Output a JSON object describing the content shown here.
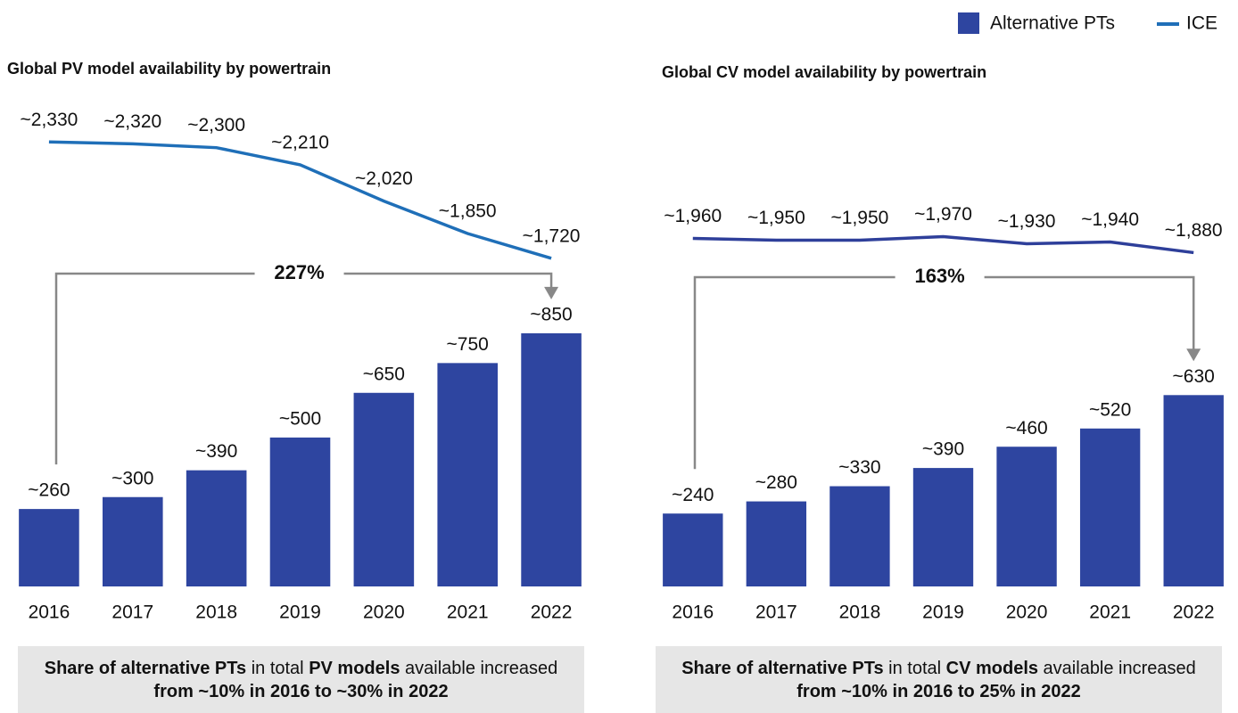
{
  "chart_data": [
    {
      "type": "bar",
      "title": "Global PV model availability by powertrain",
      "categories": [
        "2016",
        "2017",
        "2018",
        "2019",
        "2020",
        "2021",
        "2022"
      ],
      "series": [
        {
          "name": "Alternative PTs",
          "color": "#2e45a0",
          "values": [
            260,
            300,
            390,
            500,
            650,
            750,
            850
          ],
          "value_labels": [
            "~260",
            "~300",
            "~390",
            "~500",
            "~650",
            "~750",
            "~850"
          ]
        },
        {
          "name": "ICE",
          "color": "#1f6fb8",
          "axis": "y2",
          "values": [
            2330,
            2320,
            2300,
            2210,
            2020,
            1850,
            1720
          ],
          "value_labels": [
            "~2,330",
            "~2,320",
            "~2,300",
            "~2,210",
            "~2,020",
            "~1,850",
            "~1,720"
          ]
        }
      ],
      "ylim": [
        0,
        1550
      ],
      "y2lim": [
        0,
        2420
      ],
      "annotation": "227%",
      "note": [
        "Share of alternative PTs",
        " in total ",
        "PV models",
        " available increased ",
        "from ~10% in 2016 to ~30% in 2022"
      ]
    },
    {
      "type": "bar",
      "title": "Global CV model availability by powertrain",
      "categories": [
        "2016",
        "2017",
        "2018",
        "2019",
        "2020",
        "2021",
        "2022"
      ],
      "series": [
        {
          "name": "Alternative PTs",
          "color": "#2e45a0",
          "values": [
            240,
            280,
            330,
            390,
            460,
            520,
            630
          ],
          "value_labels": [
            "~240",
            "~280",
            "~330",
            "~390",
            "~460",
            "~520",
            "~630"
          ]
        },
        {
          "name": "ICE",
          "color": "#2e3f9a",
          "axis": "y2",
          "values": [
            1960,
            1950,
            1950,
            1970,
            1930,
            1940,
            1880
          ],
          "value_labels": [
            "~1,960",
            "~1,950",
            "~1,950",
            "~1,970",
            "~1,930",
            "~1,940",
            "~1,880"
          ]
        }
      ],
      "ylim": [
        0,
        1520
      ],
      "y2lim": [
        0,
        2600
      ],
      "annotation": "163%",
      "note": [
        "Share of alternative PTs",
        " in total ",
        "CV models",
        " available increased ",
        "from ~10% in 2016 to 25% in 2022"
      ]
    }
  ]
}
